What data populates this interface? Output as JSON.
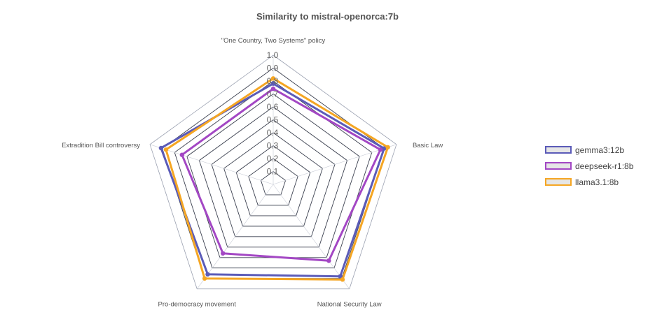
{
  "chart_data": {
    "type": "radar",
    "title": "Similarity to mistral-openorca:7b",
    "axes": [
      "\"One Country, Two Systems\" policy",
      "Basic Law",
      "National Security Law",
      "Pro-democracy movement",
      "Extradition Bill controversy"
    ],
    "r_ticks": [
      "0.1",
      "0.2",
      "0.3",
      "0.4",
      "0.5",
      "0.6",
      "0.7",
      "0.8",
      "0.9",
      "1.0"
    ],
    "r_range": [
      0,
      1
    ],
    "grid": true,
    "legend_position": "right",
    "series": [
      {
        "name": "gemma3:12b",
        "color": "#5b5bb8",
        "values": [
          0.78,
          0.9,
          0.88,
          0.86,
          0.91
        ]
      },
      {
        "name": "deepseek-r1:8b",
        "color": "#a347c4",
        "values": [
          0.74,
          0.87,
          0.73,
          0.66,
          0.74
        ]
      },
      {
        "name": "llama3.1:8b",
        "color": "#f5a623",
        "values": [
          0.82,
          0.93,
          0.91,
          0.9,
          0.87
        ]
      }
    ]
  }
}
